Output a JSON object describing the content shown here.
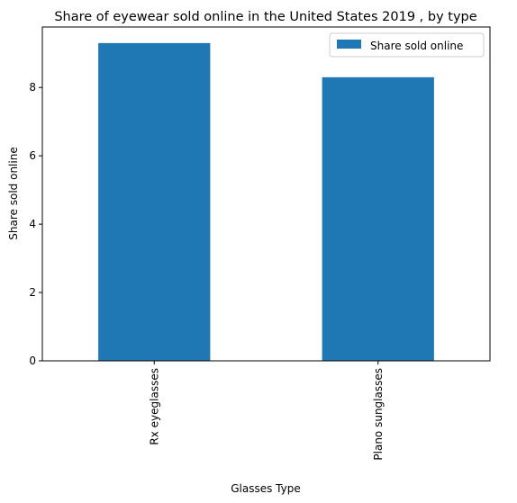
{
  "chart_data": {
    "type": "bar",
    "title": "Share of eyewear sold online in the United States 2019 , by type",
    "xlabel": "Glasses Type",
    "ylabel": "Share sold online",
    "categories": [
      "Rx eyeglasses",
      "Plano sunglasses"
    ],
    "series": [
      {
        "name": "Share sold online",
        "values": [
          9.3,
          8.3
        ],
        "color": "#1f77b4"
      }
    ],
    "ylim": [
      0,
      9.77
    ],
    "yticks": [
      0,
      2,
      4,
      6,
      8
    ],
    "grid": false,
    "legend_position": "top-right"
  }
}
